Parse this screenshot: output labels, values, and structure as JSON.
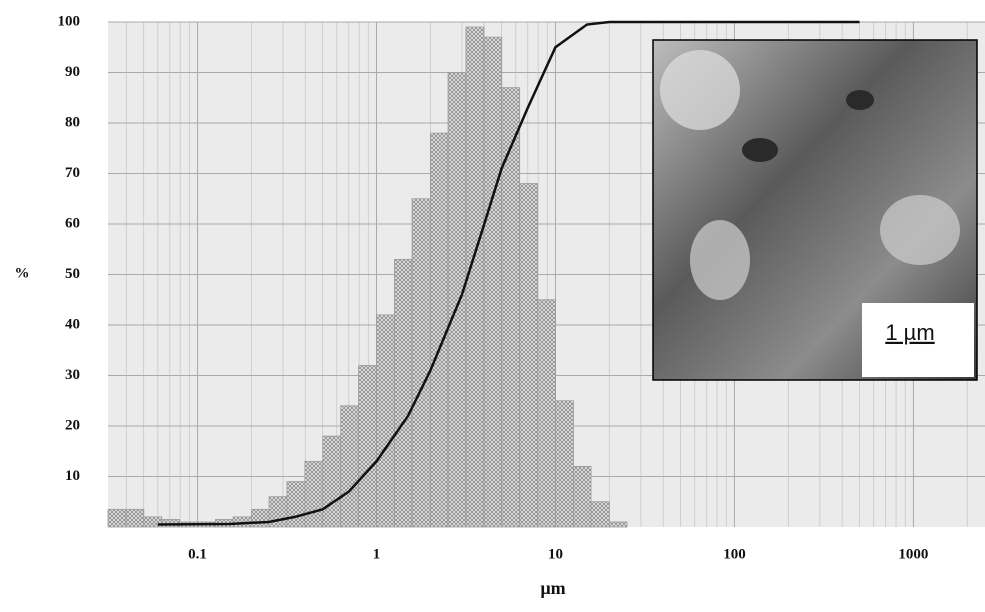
{
  "chart_data": {
    "type": "histogram",
    "x_label": "µm",
    "y_label": "%",
    "log_x": true,
    "grid": true,
    "xlim": [
      0.0316,
      2512
    ],
    "ylim": [
      0,
      100
    ],
    "xticks": [
      0.1,
      1,
      10,
      100,
      1000
    ],
    "yticks": [
      10,
      20,
      30,
      40,
      50,
      60,
      70,
      80,
      90,
      100
    ],
    "bins": [
      0.0316,
      0.0398,
      0.0501,
      0.0631,
      0.0794,
      0.1,
      0.126,
      0.158,
      0.2,
      0.251,
      0.316,
      0.398,
      0.501,
      0.631,
      0.794,
      1,
      1.26,
      1.58,
      2,
      2.51,
      3.16,
      3.98,
      5.01,
      6.31,
      7.94,
      10,
      12.6,
      15.8,
      20,
      25.1
    ],
    "values": [
      3.5,
      3.5,
      2,
      1.5,
      1,
      1,
      1.5,
      2,
      3.5,
      6,
      9,
      13,
      18,
      24,
      32,
      42,
      53,
      65,
      78,
      90,
      99,
      97,
      87,
      68,
      45,
      25,
      12,
      5,
      1
    ],
    "color": "#9a9a9a",
    "cumulative": {
      "color": "#111111",
      "x": [
        0.06,
        0.15,
        0.25,
        0.35,
        0.5,
        0.7,
        1,
        1.5,
        2,
        3,
        4,
        5,
        7,
        10,
        15,
        20,
        500
      ],
      "values": [
        0.5,
        0.6,
        1,
        2,
        3.5,
        7,
        13,
        22,
        31,
        46,
        60,
        71,
        83,
        95,
        99.5,
        100,
        100
      ]
    },
    "inset_label": "1 µm"
  }
}
